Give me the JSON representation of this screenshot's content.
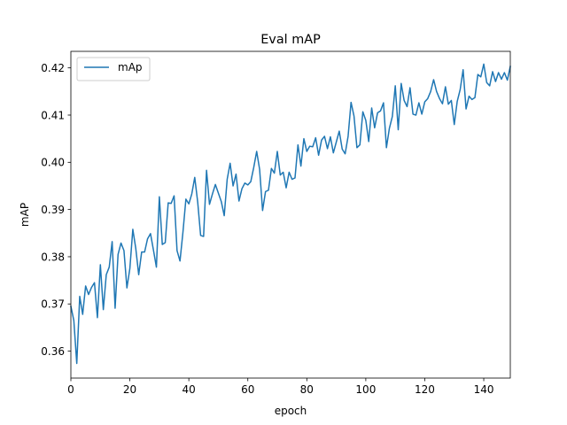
{
  "chart_data": {
    "type": "line",
    "title": "Eval mAP",
    "xlabel": "epoch",
    "ylabel": "mAP",
    "xlim": [
      0,
      149
    ],
    "ylim": [
      0.3543,
      0.4235
    ],
    "xticks": [
      0,
      20,
      40,
      60,
      80,
      100,
      120,
      140
    ],
    "yticks": [
      0.36,
      0.37,
      0.38,
      0.39,
      0.4,
      0.41,
      0.42
    ],
    "ytick_labels": [
      "0.36",
      "0.37",
      "0.38",
      "0.39",
      "0.40",
      "0.41",
      "0.42"
    ],
    "grid": false,
    "legend": "top-left",
    "series": [
      {
        "name": "mAp",
        "color": "#1f77b4",
        "x": [
          0,
          1,
          2,
          3,
          4,
          5,
          6,
          7,
          8,
          9,
          10,
          11,
          12,
          13,
          14,
          15,
          16,
          17,
          18,
          19,
          20,
          21,
          22,
          23,
          24,
          25,
          26,
          27,
          28,
          29,
          30,
          31,
          32,
          33,
          34,
          35,
          36,
          37,
          38,
          39,
          40,
          41,
          42,
          43,
          44,
          45,
          46,
          47,
          48,
          49,
          50,
          51,
          52,
          53,
          54,
          55,
          56,
          57,
          58,
          59,
          60,
          61,
          62,
          63,
          64,
          65,
          66,
          67,
          68,
          69,
          70,
          71,
          72,
          73,
          74,
          75,
          76,
          77,
          78,
          79,
          80,
          81,
          82,
          83,
          84,
          85,
          86,
          87,
          88,
          89,
          90,
          91,
          92,
          93,
          94,
          95,
          96,
          97,
          98,
          99,
          100,
          101,
          102,
          103,
          104,
          105,
          106,
          107,
          108,
          109,
          110,
          111,
          112,
          113,
          114,
          115,
          116,
          117,
          118,
          119,
          120,
          121,
          122,
          123,
          124,
          125,
          126,
          127,
          128,
          129,
          130,
          131,
          132,
          133,
          134,
          135,
          136,
          137,
          138,
          139,
          140,
          141,
          142,
          143,
          144,
          145,
          146,
          147,
          148,
          149
        ],
        "values": [
          0.3695,
          0.3665,
          0.3574,
          0.3716,
          0.3678,
          0.3738,
          0.372,
          0.3735,
          0.3745,
          0.3671,
          0.3783,
          0.3688,
          0.3762,
          0.3778,
          0.3832,
          0.3691,
          0.3805,
          0.3829,
          0.3813,
          0.3734,
          0.3775,
          0.3858,
          0.3818,
          0.3762,
          0.381,
          0.381,
          0.3838,
          0.3849,
          0.3814,
          0.3778,
          0.3927,
          0.3826,
          0.383,
          0.3914,
          0.3913,
          0.3929,
          0.3813,
          0.3791,
          0.3852,
          0.3922,
          0.3912,
          0.3933,
          0.3968,
          0.3916,
          0.3845,
          0.3843,
          0.3983,
          0.3911,
          0.3933,
          0.3953,
          0.3935,
          0.3917,
          0.3887,
          0.3964,
          0.3998,
          0.395,
          0.3975,
          0.3918,
          0.3944,
          0.3956,
          0.3952,
          0.3959,
          0.3989,
          0.4023,
          0.3985,
          0.3898,
          0.3938,
          0.3941,
          0.3987,
          0.3977,
          0.4023,
          0.3973,
          0.3979,
          0.3946,
          0.3979,
          0.3964,
          0.3967,
          0.4037,
          0.3992,
          0.405,
          0.4023,
          0.4034,
          0.4033,
          0.4052,
          0.4015,
          0.4047,
          0.4055,
          0.4029,
          0.4054,
          0.402,
          0.4043,
          0.4066,
          0.4028,
          0.4018,
          0.4055,
          0.4127,
          0.4098,
          0.4031,
          0.4037,
          0.4107,
          0.4089,
          0.4044,
          0.4115,
          0.4073,
          0.4105,
          0.4109,
          0.4126,
          0.4031,
          0.4072,
          0.4097,
          0.4162,
          0.4069,
          0.4167,
          0.4131,
          0.4118,
          0.4158,
          0.4102,
          0.41,
          0.4126,
          0.4102,
          0.4128,
          0.4135,
          0.415,
          0.4175,
          0.415,
          0.4135,
          0.4124,
          0.416,
          0.4123,
          0.4131,
          0.408,
          0.4129,
          0.4154,
          0.4196,
          0.4113,
          0.414,
          0.4133,
          0.4137,
          0.4186,
          0.4181,
          0.4208,
          0.4169,
          0.4162,
          0.4192,
          0.4171,
          0.419,
          0.4176,
          0.419,
          0.4174,
          0.4203
        ]
      }
    ]
  }
}
